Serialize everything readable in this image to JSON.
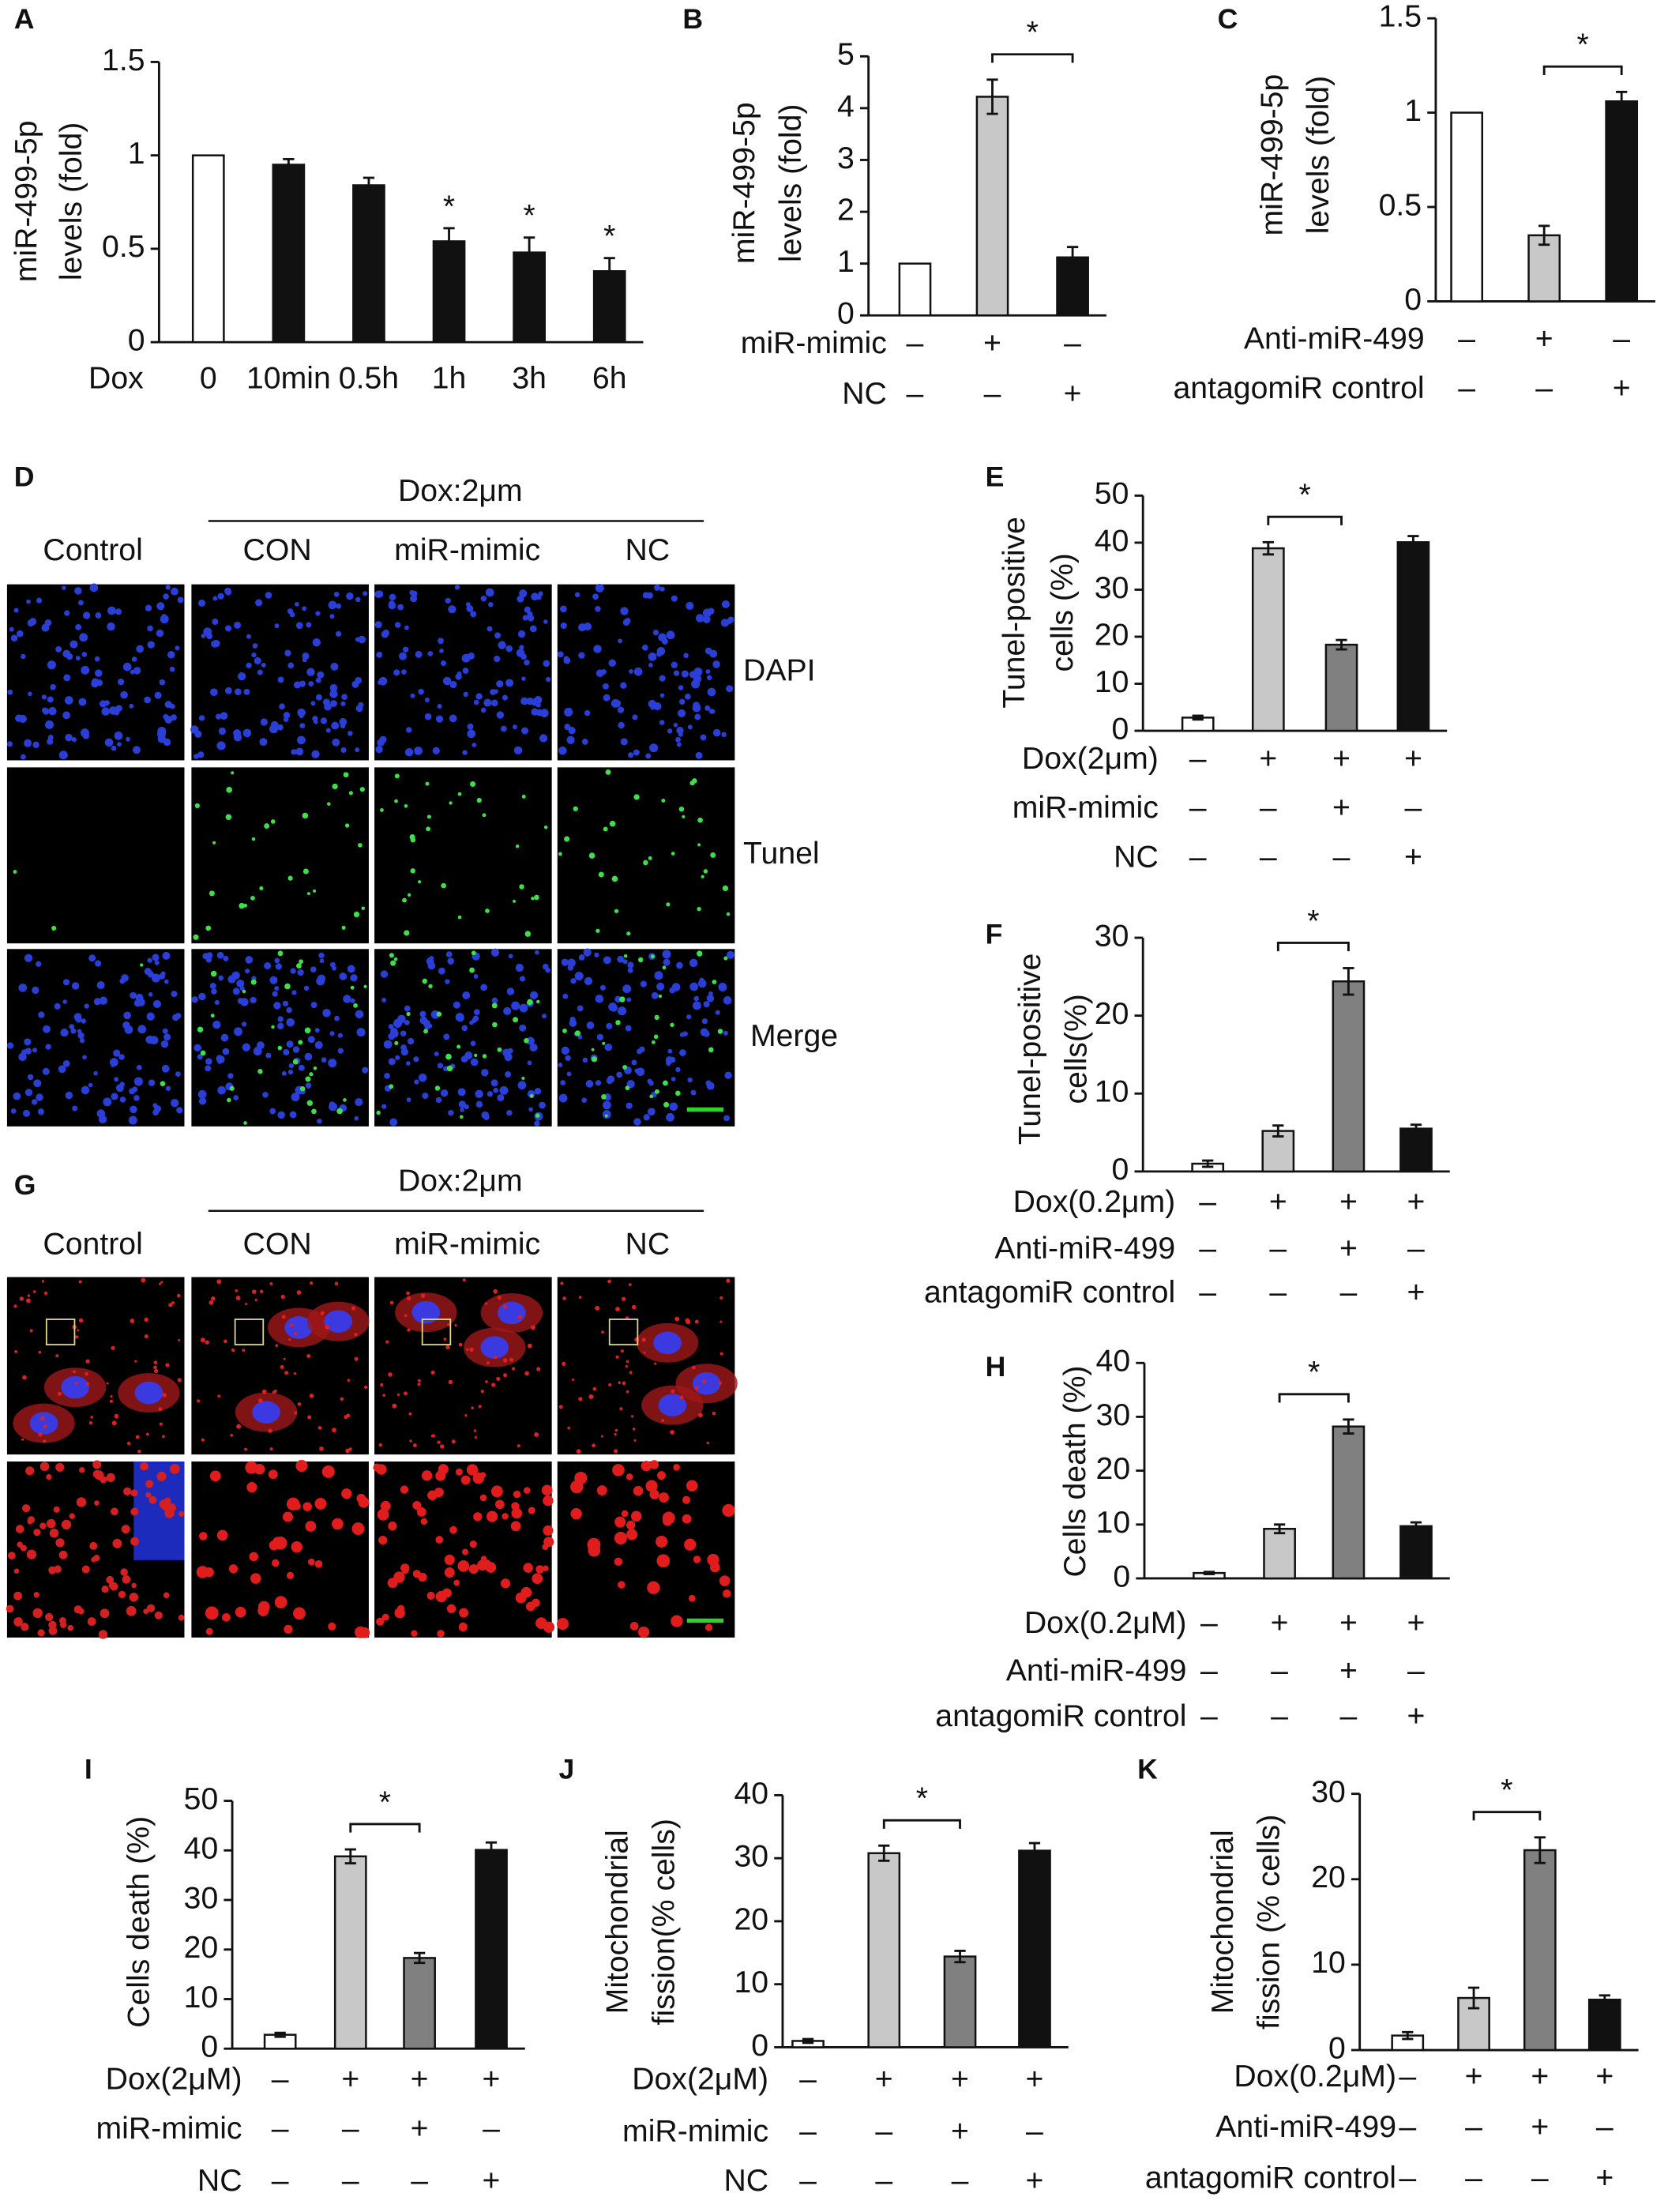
{
  "chart_data": [
    {
      "type": "bar",
      "panel": "A",
      "y_label": [
        "miR-499-5p",
        "levels (fold)"
      ],
      "ylim": [
        0,
        1.5
      ],
      "yticks": [
        0,
        0.5,
        1,
        1.5
      ],
      "values": [
        1,
        0.95,
        0.84,
        0.54,
        0.48,
        0.38
      ],
      "errors": [
        null,
        0.03,
        0.04,
        0.07,
        0.08,
        0.07
      ],
      "colors": [
        "#ffffff",
        "#111111",
        "#111111",
        "#111111",
        "#111111",
        "#111111"
      ],
      "bar_annotations": [
        null,
        null,
        null,
        "*",
        "*",
        "*"
      ],
      "rows": [
        {
          "label": "Dox",
          "cells": [
            "0",
            "10min",
            "0.5h",
            "1h",
            "3h",
            "6h"
          ]
        }
      ]
    },
    {
      "type": "bar",
      "panel": "B",
      "y_label": [
        "miR-499-5p",
        "levels (fold)"
      ],
      "ylim": [
        0,
        5
      ],
      "yticks": [
        0,
        1,
        2,
        3,
        4,
        5
      ],
      "values": [
        1,
        4.22,
        1.12
      ],
      "errors": [
        null,
        0.33,
        0.2
      ],
      "colors": [
        "#ffffff",
        "#c8c8c8",
        "#111111"
      ],
      "bracket": {
        "label": "*",
        "between": [
          1,
          2
        ]
      },
      "rows": [
        {
          "label": "miR-mimic",
          "cells": [
            "–",
            "+",
            "–"
          ]
        },
        {
          "label": "NC",
          "cells": [
            "–",
            "–",
            "+"
          ]
        }
      ]
    },
    {
      "type": "bar",
      "panel": "C",
      "y_label": [
        "miR-499-5p",
        "levels (fold)"
      ],
      "ylim": [
        0,
        1.5
      ],
      "yticks": [
        0,
        0.5,
        1,
        1.5
      ],
      "values": [
        1,
        0.35,
        1.06
      ],
      "errors": [
        null,
        0.05,
        0.05
      ],
      "colors": [
        "#ffffff",
        "#c8c8c8",
        "#111111"
      ],
      "bracket": {
        "label": "*",
        "between": [
          1,
          2
        ]
      },
      "rows": [
        {
          "label": "Anti-miR-499",
          "cells": [
            "–",
            "+",
            "–"
          ]
        },
        {
          "label": "antagomiR control",
          "cells": [
            "–",
            "–",
            "+"
          ]
        }
      ]
    },
    {
      "type": "bar",
      "panel": "E",
      "y_label": [
        "Tunel-positive",
        "cells (%)"
      ],
      "ylim": [
        0,
        50
      ],
      "yticks": [
        0,
        10,
        20,
        30,
        40,
        50
      ],
      "values": [
        2.8,
        38.8,
        18.3,
        40.1
      ],
      "errors": [
        0.4,
        1.3,
        1,
        1.3
      ],
      "colors": [
        "#ffffff",
        "#c8c8c8",
        "#808080",
        "#111111"
      ],
      "bracket": {
        "label": "*",
        "between": [
          1,
          2
        ]
      },
      "rows": [
        {
          "label": "Dox(2μm)",
          "cells": [
            "–",
            "+",
            "+",
            "+"
          ]
        },
        {
          "label": "miR-mimic",
          "cells": [
            "–",
            "–",
            "+",
            "–"
          ]
        },
        {
          "label": "NC",
          "cells": [
            "–",
            "–",
            "–",
            "+"
          ]
        }
      ]
    },
    {
      "type": "bar",
      "panel": "F",
      "y_label": [
        "Tunel-positive",
        "cells(%)"
      ],
      "ylim": [
        0,
        30
      ],
      "yticks": [
        0,
        10,
        20,
        30
      ],
      "values": [
        1,
        5.2,
        24.4,
        5.5
      ],
      "errors": [
        0.4,
        0.7,
        1.7,
        0.5
      ],
      "colors": [
        "#ffffff",
        "#c8c8c8",
        "#808080",
        "#111111"
      ],
      "bracket": {
        "label": "*",
        "between": [
          1,
          2
        ]
      },
      "rows": [
        {
          "label": "Dox(0.2μm)",
          "cells": [
            "–",
            "+",
            "+",
            "+"
          ]
        },
        {
          "label": "Anti-miR-499",
          "cells": [
            "–",
            "–",
            "+",
            "–"
          ]
        },
        {
          "label": "antagomiR control",
          "cells": [
            "–",
            "–",
            "–",
            "+"
          ]
        }
      ]
    },
    {
      "type": "bar",
      "panel": "H",
      "y_label": [
        "Cells  death (%)"
      ],
      "ylim": [
        0,
        40
      ],
      "yticks": [
        0,
        10,
        20,
        30,
        40
      ],
      "values": [
        1,
        9.2,
        28.2,
        9.7
      ],
      "errors": [
        0.2,
        0.8,
        1.3,
        0.7
      ],
      "colors": [
        "#ffffff",
        "#c8c8c8",
        "#808080",
        "#111111"
      ],
      "bracket": {
        "label": "*",
        "between": [
          1,
          2
        ]
      },
      "rows": [
        {
          "label": "Dox(0.2μM)",
          "cells": [
            "–",
            "+",
            "+",
            "+"
          ]
        },
        {
          "label": "Anti-miR-499",
          "cells": [
            "–",
            "–",
            "+",
            "–"
          ]
        },
        {
          "label": "antagomiR control",
          "cells": [
            "–",
            "–",
            "–",
            "+"
          ]
        }
      ]
    },
    {
      "type": "bar",
      "panel": "I",
      "y_label": [
        "Cells death (%)"
      ],
      "ylim": [
        0,
        50
      ],
      "yticks": [
        0,
        10,
        20,
        30,
        40,
        50
      ],
      "values": [
        2.8,
        38.8,
        18.3,
        40.1
      ],
      "errors": [
        0.4,
        1.4,
        1,
        1.5
      ],
      "colors": [
        "#ffffff",
        "#c8c8c8",
        "#808080",
        "#111111"
      ],
      "bracket": {
        "label": "*",
        "between": [
          1,
          2
        ]
      },
      "rows": [
        {
          "label": "Dox(2μM)",
          "cells": [
            "–",
            "+",
            "+",
            "+"
          ]
        },
        {
          "label": "miR-mimic",
          "cells": [
            "–",
            "–",
            "+",
            "–"
          ]
        },
        {
          "label": "NC",
          "cells": [
            "–",
            "–",
            "–",
            "+"
          ]
        }
      ]
    },
    {
      "type": "bar",
      "panel": "J",
      "y_label": [
        "Mitochondrial",
        "fission(% cells)"
      ],
      "ylim": [
        0,
        40
      ],
      "yticks": [
        0,
        10,
        20,
        30,
        40
      ],
      "values": [
        1,
        30.8,
        14.4,
        31.2
      ],
      "errors": [
        0.3,
        1.2,
        0.9,
        1.2
      ],
      "colors": [
        "#ffffff",
        "#c8c8c8",
        "#808080",
        "#111111"
      ],
      "bracket": {
        "label": "*",
        "between": [
          1,
          2
        ]
      },
      "rows": [
        {
          "label": "Dox(2μM)",
          "cells": [
            "–",
            "+",
            "+",
            "+"
          ]
        },
        {
          "label": "miR-mimic",
          "cells": [
            "–",
            "–",
            "+",
            "–"
          ]
        },
        {
          "label": "NC",
          "cells": [
            "–",
            "–",
            "–",
            "+"
          ]
        }
      ]
    },
    {
      "type": "bar",
      "panel": "K",
      "y_label": [
        "Mitochondrial",
        "fission (% cells)"
      ],
      "ylim": [
        0,
        30
      ],
      "yticks": [
        0,
        10,
        20,
        30
      ],
      "values": [
        1.7,
        6.1,
        23.4,
        5.9
      ],
      "errors": [
        0.4,
        1.2,
        1.5,
        0.5
      ],
      "colors": [
        "#ffffff",
        "#c8c8c8",
        "#808080",
        "#111111"
      ],
      "bracket": {
        "label": "*",
        "between": [
          1,
          2
        ]
      },
      "rows": [
        {
          "label": "Dox(0.2μM)",
          "cells": [
            "–",
            "+",
            "+",
            "+"
          ]
        },
        {
          "label": "Anti-miR-499",
          "cells": [
            "–",
            "–",
            "+",
            "–"
          ]
        },
        {
          "label": "antagomiR control",
          "cells": [
            "–",
            "–",
            "–",
            "+"
          ]
        }
      ]
    }
  ],
  "image_panels": [
    {
      "panel": "D",
      "header": "Dox:2μm",
      "columns": [
        "Control",
        "CON",
        "miR-mimic",
        "NC"
      ],
      "rows": [
        "DAPI",
        "Tunel",
        "Merge"
      ]
    },
    {
      "panel": "G",
      "header": "Dox:2μm",
      "columns": [
        "Control",
        "CON",
        "miR-mimic",
        "NC"
      ]
    }
  ]
}
